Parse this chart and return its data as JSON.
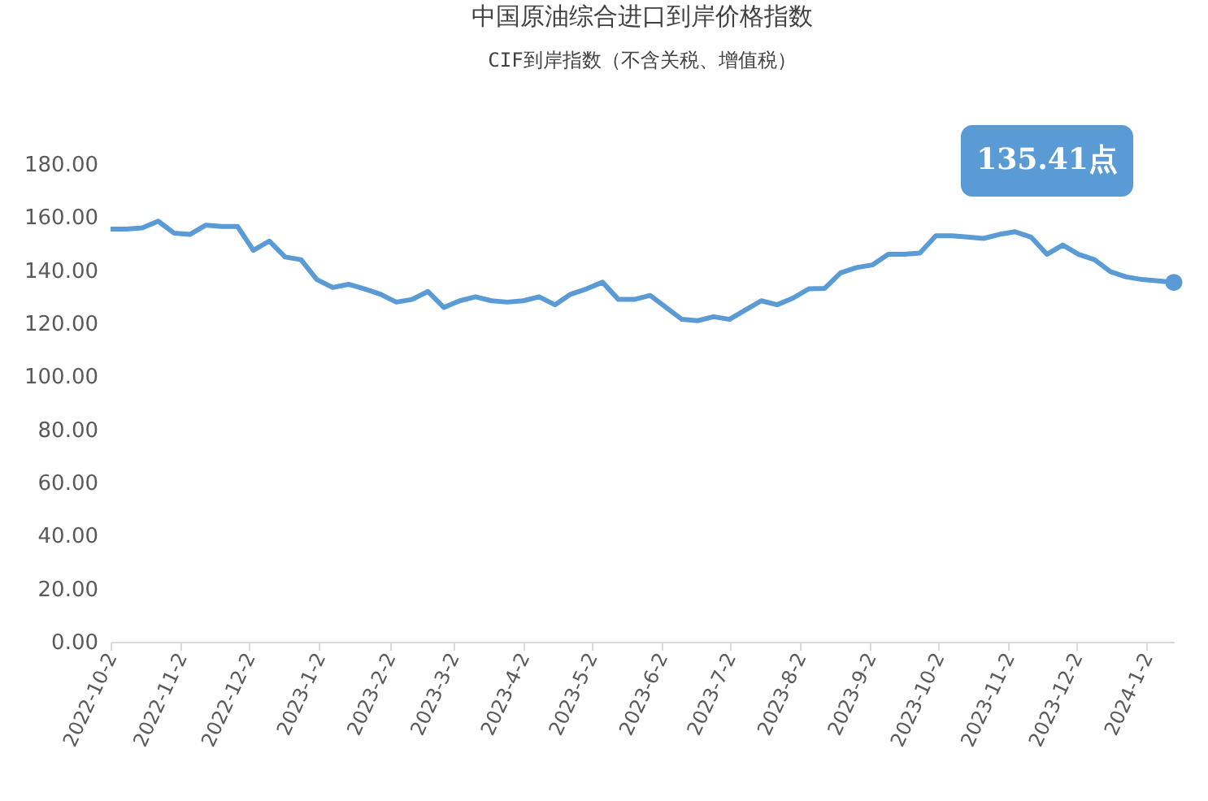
{
  "chart_data": {
    "type": "line",
    "title": "中国原油综合进口到岸价格指数",
    "subtitle": "CIF到岸指数（不含关税、增值税）",
    "x": [
      "2022-10-02",
      "2022-10-09",
      "2022-10-16",
      "2022-10-23",
      "2022-10-30",
      "2022-11-06",
      "2022-11-13",
      "2022-11-20",
      "2022-11-27",
      "2022-12-04",
      "2022-12-11",
      "2022-12-18",
      "2022-12-25",
      "2023-01-01",
      "2023-01-08",
      "2023-01-15",
      "2023-01-22",
      "2023-01-29",
      "2023-02-05",
      "2023-02-12",
      "2023-02-19",
      "2023-02-26",
      "2023-03-05",
      "2023-03-12",
      "2023-03-19",
      "2023-03-26",
      "2023-04-02",
      "2023-04-09",
      "2023-04-16",
      "2023-04-23",
      "2023-04-30",
      "2023-05-07",
      "2023-05-14",
      "2023-05-21",
      "2023-05-28",
      "2023-06-04",
      "2023-06-11",
      "2023-06-18",
      "2023-06-25",
      "2023-07-02",
      "2023-07-09",
      "2023-07-16",
      "2023-07-23",
      "2023-07-30",
      "2023-08-06",
      "2023-08-13",
      "2023-08-20",
      "2023-08-27",
      "2023-09-03",
      "2023-09-10",
      "2023-09-17",
      "2023-09-24",
      "2023-10-01",
      "2023-10-08",
      "2023-10-15",
      "2023-10-22",
      "2023-10-29",
      "2023-11-05",
      "2023-11-12",
      "2023-11-19",
      "2023-11-26",
      "2023-12-03",
      "2023-12-10",
      "2023-12-17",
      "2023-12-24",
      "2023-12-31",
      "2024-01-07",
      "2024-01-14"
    ],
    "series": [
      {
        "color": "#5b9bd5",
        "values": [
          155.5,
          155.5,
          156,
          158.5,
          154,
          153.5,
          157,
          156.5,
          156.5,
          147.5,
          151,
          145,
          144,
          136.5,
          133.5,
          134.7,
          133,
          131,
          128,
          129,
          132,
          126,
          128.5,
          130,
          128.5,
          128,
          128.5,
          130,
          127,
          131,
          133,
          135.5,
          129,
          129,
          130.5,
          126,
          121.5,
          121,
          122.5,
          121.5,
          125,
          128.5,
          127,
          129.5,
          133,
          133.2,
          139,
          141,
          142,
          146,
          146,
          146.5,
          153,
          153,
          152.5,
          152,
          153.5,
          154.5,
          152.5,
          146,
          149.5,
          146,
          144,
          139.5,
          137.5,
          136.5,
          136,
          135.41
        ]
      }
    ],
    "ylim": [
      0,
      180
    ],
    "yticks": [
      {
        "value": 0,
        "label": "0.00"
      },
      {
        "value": 20,
        "label": "20.00"
      },
      {
        "value": 40,
        "label": "40.00"
      },
      {
        "value": 60,
        "label": "60.00"
      },
      {
        "value": 80,
        "label": "80.00"
      },
      {
        "value": 100,
        "label": "100.00"
      },
      {
        "value": 120,
        "label": "120.00"
      },
      {
        "value": 140,
        "label": "140.00"
      },
      {
        "value": 160,
        "label": "160.00"
      },
      {
        "value": 180,
        "label": "180.00"
      }
    ],
    "xlim": [
      "2022-10-02",
      "2024-01-14"
    ],
    "xticks": [
      {
        "value": "2022-10-02",
        "label": "2022-10-2"
      },
      {
        "value": "2022-11-02",
        "label": "2022-11-2"
      },
      {
        "value": "2022-12-02",
        "label": "2022-12-2"
      },
      {
        "value": "2023-01-02",
        "label": "2023-1-2"
      },
      {
        "value": "2023-02-02",
        "label": "2023-2-2"
      },
      {
        "value": "2023-03-02",
        "label": "2023-3-2"
      },
      {
        "value": "2023-04-02",
        "label": "2023-4-2"
      },
      {
        "value": "2023-05-02",
        "label": "2023-5-2"
      },
      {
        "value": "2023-06-02",
        "label": "2023-6-2"
      },
      {
        "value": "2023-07-02",
        "label": "2023-7-2"
      },
      {
        "value": "2023-08-02",
        "label": "2023-8-2"
      },
      {
        "value": "2023-09-02",
        "label": "2023-9-2"
      },
      {
        "value": "2023-10-02",
        "label": "2023-10-2"
      },
      {
        "value": "2023-11-02",
        "label": "2023-11-2"
      },
      {
        "value": "2023-12-02",
        "label": "2023-12-2"
      },
      {
        "value": "2024-01-02",
        "label": "2024-1-2"
      }
    ],
    "annotations": [
      "135.41点"
    ],
    "grid": false,
    "marker": "none",
    "line_style": "solid"
  }
}
